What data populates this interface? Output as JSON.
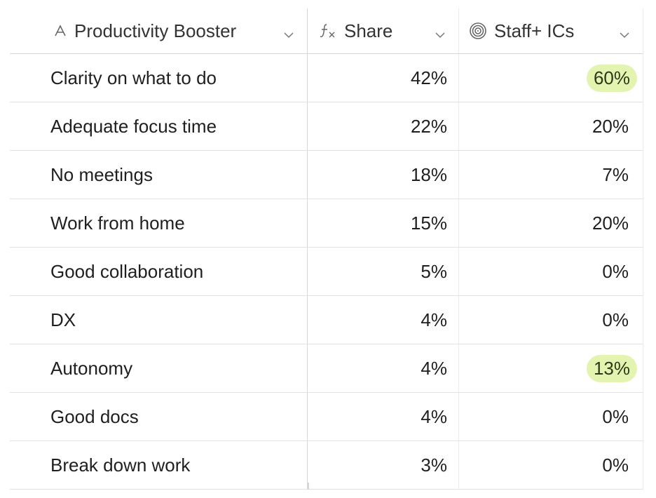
{
  "columns": {
    "booster": {
      "label": "Productivity Booster",
      "icon": "text-type-icon"
    },
    "share": {
      "label": "Share",
      "icon": "formula-icon"
    },
    "staff": {
      "label": "Staff+ ICs",
      "icon": "spiral-icon"
    }
  },
  "highlight_color": "#e3f3b0",
  "rows": [
    {
      "booster": "Clarity on what to do",
      "share": "42%",
      "staff": "60%",
      "highlight": true
    },
    {
      "booster": "Adequate focus time",
      "share": "22%",
      "staff": "20%",
      "highlight": false
    },
    {
      "booster": "No meetings",
      "share": "18%",
      "staff": "7%",
      "highlight": false
    },
    {
      "booster": "Work from home",
      "share": "15%",
      "staff": "20%",
      "highlight": false
    },
    {
      "booster": "Good collaboration",
      "share": "5%",
      "staff": "0%",
      "highlight": false
    },
    {
      "booster": "DX",
      "share": "4%",
      "staff": "0%",
      "highlight": false
    },
    {
      "booster": "Autonomy",
      "share": "4%",
      "staff": "13%",
      "highlight": true
    },
    {
      "booster": "Good docs",
      "share": "4%",
      "staff": "0%",
      "highlight": false
    },
    {
      "booster": "Break down work",
      "share": "3%",
      "staff": "0%",
      "highlight": false
    }
  ]
}
